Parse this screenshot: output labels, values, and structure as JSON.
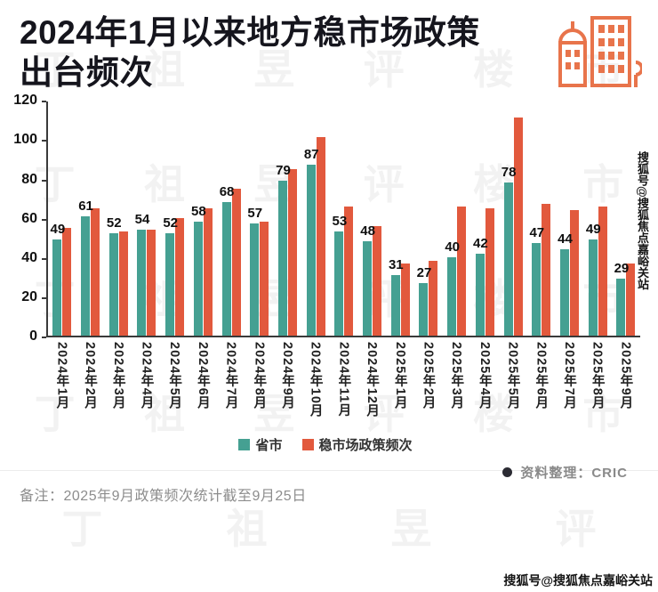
{
  "header": {
    "title_line1": "2024年1月以来地方稳市场政策",
    "title_line2": "出台频次"
  },
  "chart_data": {
    "type": "bar",
    "title": "2024年1月以来地方稳市场政策出台频次",
    "xlabel": "",
    "ylabel": "",
    "ylim": [
      0,
      120
    ],
    "yticks": [
      0,
      20,
      40,
      60,
      80,
      100,
      120
    ],
    "grid": false,
    "legend_position": "bottom",
    "categories": [
      "2024年1月",
      "2024年2月",
      "2024年3月",
      "2024年4月",
      "2024年5月",
      "2024年6月",
      "2024年7月",
      "2024年8月",
      "2024年9月",
      "2024年10月",
      "2024年11月",
      "2024年12月",
      "2025年1月",
      "2025年2月",
      "2025年3月",
      "2025年4月",
      "2025年5月",
      "2025年6月",
      "2025年7月",
      "2025年8月",
      "2025年9月"
    ],
    "series": [
      {
        "name": "省市",
        "color": "#45A092",
        "labels_shown": true,
        "values": [
          49,
          61,
          52,
          54,
          52,
          58,
          68,
          57,
          79,
          87,
          53,
          48,
          31,
          27,
          40,
          42,
          78,
          47,
          44,
          49,
          29
        ]
      },
      {
        "name": "稳市场政策频次",
        "color": "#E2593D",
        "labels_shown": false,
        "values": [
          55,
          65,
          53,
          54,
          60,
          65,
          75,
          58,
          85,
          101,
          66,
          56,
          37,
          38,
          66,
          65,
          111,
          67,
          64,
          66,
          37
        ]
      }
    ]
  },
  "footer": {
    "note": "备注：2025年9月政策频次统计截至9月25日",
    "source": "资料整理：CRIC",
    "sohu_tag": "搜狐号@搜狐焦点嘉峪关站"
  },
  "watermark": "丁祖昱评楼市",
  "colors": {
    "accent_teal": "#45A092",
    "accent_orange": "#E2593D",
    "icon_orange": "#E8744B",
    "title_color": "#15151D"
  }
}
